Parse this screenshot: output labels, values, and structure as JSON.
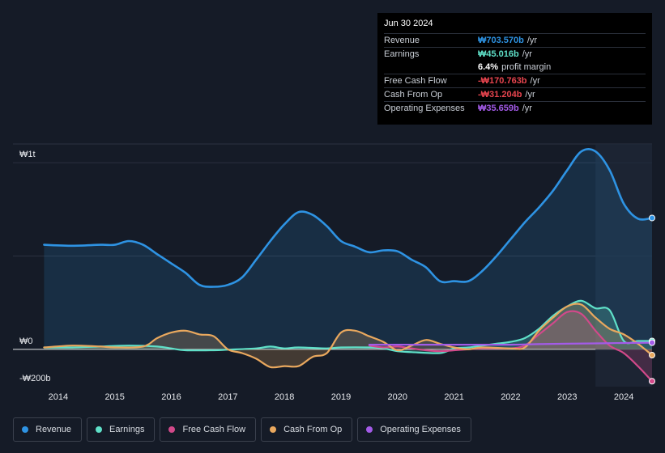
{
  "tooltip": {
    "date": "Jun 30 2024",
    "rows": [
      {
        "label": "Revenue",
        "value": "₩703.570b",
        "unit": "/yr",
        "color": "#2e93e3"
      },
      {
        "label": "Earnings",
        "value": "₩45.016b",
        "unit": "/yr",
        "color": "#5fe0c8"
      },
      {
        "label": "",
        "value": "6.4%",
        "unit": "profit margin",
        "color": "#ffffff"
      },
      {
        "label": "Free Cash Flow",
        "value": "-₩170.763b",
        "unit": "/yr",
        "color": "#e8454f"
      },
      {
        "label": "Cash From Op",
        "value": "-₩31.204b",
        "unit": "/yr",
        "color": "#e8454f"
      },
      {
        "label": "Operating Expenses",
        "value": "₩35.659b",
        "unit": "/yr",
        "color": "#a35be8"
      }
    ]
  },
  "chart_data": {
    "type": "line",
    "title": "",
    "ylim": [
      -200,
      1100
    ],
    "y_tick_labels": [
      {
        "value": 1000,
        "label": "₩1t"
      },
      {
        "value": 0,
        "label": "₩0"
      },
      {
        "value": -200,
        "label": "-₩200b"
      }
    ],
    "x_tick_labels": [
      {
        "value": 2014.0,
        "label": "2014"
      },
      {
        "value": 2015.0,
        "label": "2015"
      },
      {
        "value": 2016.0,
        "label": "2016"
      },
      {
        "value": 2017.0,
        "label": "2017"
      },
      {
        "value": 2018.0,
        "label": "2018"
      },
      {
        "value": 2019.0,
        "label": "2019"
      },
      {
        "value": 2020.0,
        "label": "2020"
      },
      {
        "value": 2021.0,
        "label": "2021"
      },
      {
        "value": 2022.0,
        "label": "2022"
      },
      {
        "value": 2023.0,
        "label": "2023"
      },
      {
        "value": 2024.0,
        "label": "2024"
      }
    ],
    "xlim": [
      2013.2,
      2024.5
    ],
    "highlight_from": 2023.5,
    "series": [
      {
        "name": "Revenue",
        "color": "#2e93e3",
        "fill": true,
        "points": [
          [
            2013.75,
            560
          ],
          [
            2014.25,
            555
          ],
          [
            2014.75,
            560
          ],
          [
            2015.0,
            560
          ],
          [
            2015.25,
            580
          ],
          [
            2015.5,
            560
          ],
          [
            2015.75,
            510
          ],
          [
            2016.0,
            460
          ],
          [
            2016.25,
            410
          ],
          [
            2016.5,
            345
          ],
          [
            2016.75,
            335
          ],
          [
            2017.0,
            345
          ],
          [
            2017.25,
            385
          ],
          [
            2017.5,
            480
          ],
          [
            2017.75,
            580
          ],
          [
            2018.0,
            670
          ],
          [
            2018.25,
            735
          ],
          [
            2018.5,
            720
          ],
          [
            2018.75,
            660
          ],
          [
            2019.0,
            580
          ],
          [
            2019.25,
            550
          ],
          [
            2019.5,
            520
          ],
          [
            2019.75,
            530
          ],
          [
            2020.0,
            525
          ],
          [
            2020.25,
            480
          ],
          [
            2020.5,
            440
          ],
          [
            2020.75,
            365
          ],
          [
            2021.0,
            365
          ],
          [
            2021.25,
            365
          ],
          [
            2021.5,
            420
          ],
          [
            2021.75,
            500
          ],
          [
            2022.0,
            590
          ],
          [
            2022.25,
            680
          ],
          [
            2022.5,
            760
          ],
          [
            2022.75,
            850
          ],
          [
            2023.0,
            960
          ],
          [
            2023.25,
            1060
          ],
          [
            2023.5,
            1060
          ],
          [
            2023.75,
            960
          ],
          [
            2024.0,
            780
          ],
          [
            2024.25,
            700
          ],
          [
            2024.5,
            703.57
          ]
        ]
      },
      {
        "name": "Earnings",
        "color": "#5fe0c8",
        "fill": true,
        "points": [
          [
            2013.75,
            10
          ],
          [
            2014.25,
            10
          ],
          [
            2014.75,
            15
          ],
          [
            2015.25,
            20
          ],
          [
            2015.75,
            15
          ],
          [
            2016.0,
            5
          ],
          [
            2016.25,
            -5
          ],
          [
            2016.75,
            -5
          ],
          [
            2017.0,
            -2
          ],
          [
            2017.5,
            5
          ],
          [
            2017.75,
            15
          ],
          [
            2018.0,
            5
          ],
          [
            2018.25,
            10
          ],
          [
            2018.75,
            5
          ],
          [
            2019.0,
            10
          ],
          [
            2019.5,
            10
          ],
          [
            2019.75,
            5
          ],
          [
            2020.0,
            -10
          ],
          [
            2020.25,
            -15
          ],
          [
            2020.75,
            -20
          ],
          [
            2021.0,
            5
          ],
          [
            2021.25,
            10
          ],
          [
            2021.5,
            20
          ],
          [
            2021.75,
            30
          ],
          [
            2022.0,
            40
          ],
          [
            2022.25,
            60
          ],
          [
            2022.5,
            110
          ],
          [
            2022.75,
            180
          ],
          [
            2023.0,
            230
          ],
          [
            2023.25,
            260
          ],
          [
            2023.5,
            220
          ],
          [
            2023.75,
            210
          ],
          [
            2024.0,
            45
          ],
          [
            2024.25,
            45
          ],
          [
            2024.5,
            45.016
          ]
        ]
      },
      {
        "name": "Free Cash Flow",
        "color": "#d2498a",
        "fill": true,
        "points": [
          [
            2019.5,
            20
          ],
          [
            2019.75,
            10
          ],
          [
            2020.0,
            15
          ],
          [
            2020.25,
            5
          ],
          [
            2020.5,
            -5
          ],
          [
            2020.75,
            -10
          ],
          [
            2021.0,
            -5
          ],
          [
            2021.25,
            0
          ],
          [
            2021.5,
            5
          ],
          [
            2021.75,
            5
          ],
          [
            2022.0,
            5
          ],
          [
            2022.25,
            20
          ],
          [
            2022.5,
            80
          ],
          [
            2022.75,
            140
          ],
          [
            2023.0,
            200
          ],
          [
            2023.25,
            190
          ],
          [
            2023.5,
            100
          ],
          [
            2023.75,
            20
          ],
          [
            2024.0,
            -20
          ],
          [
            2024.25,
            -90
          ],
          [
            2024.5,
            -170.763
          ]
        ]
      },
      {
        "name": "Cash From Op",
        "color": "#e9a85e",
        "fill": true,
        "points": [
          [
            2013.75,
            10
          ],
          [
            2014.25,
            20
          ],
          [
            2014.75,
            15
          ],
          [
            2015.0,
            10
          ],
          [
            2015.5,
            15
          ],
          [
            2015.75,
            60
          ],
          [
            2016.0,
            90
          ],
          [
            2016.25,
            100
          ],
          [
            2016.5,
            80
          ],
          [
            2016.75,
            70
          ],
          [
            2017.0,
            0
          ],
          [
            2017.25,
            -20
          ],
          [
            2017.5,
            -50
          ],
          [
            2017.75,
            -95
          ],
          [
            2018.0,
            -90
          ],
          [
            2018.25,
            -90
          ],
          [
            2018.5,
            -40
          ],
          [
            2018.75,
            -20
          ],
          [
            2019.0,
            90
          ],
          [
            2019.25,
            100
          ],
          [
            2019.5,
            70
          ],
          [
            2019.75,
            40
          ],
          [
            2020.0,
            -5
          ],
          [
            2020.25,
            20
          ],
          [
            2020.5,
            50
          ],
          [
            2020.75,
            30
          ],
          [
            2021.0,
            10
          ],
          [
            2021.25,
            0
          ],
          [
            2021.5,
            10
          ],
          [
            2022.0,
            5
          ],
          [
            2022.25,
            10
          ],
          [
            2022.5,
            100
          ],
          [
            2022.75,
            170
          ],
          [
            2023.0,
            230
          ],
          [
            2023.25,
            240
          ],
          [
            2023.5,
            170
          ],
          [
            2023.75,
            110
          ],
          [
            2024.0,
            80
          ],
          [
            2024.25,
            30
          ],
          [
            2024.5,
            -31.204
          ]
        ]
      },
      {
        "name": "Operating Expenses",
        "color": "#a35be8",
        "fill": false,
        "points": [
          [
            2019.5,
            25
          ],
          [
            2020.0,
            25
          ],
          [
            2020.5,
            25
          ],
          [
            2021.0,
            25
          ],
          [
            2021.5,
            25
          ],
          [
            2022.0,
            25
          ],
          [
            2022.5,
            28
          ],
          [
            2023.0,
            30
          ],
          [
            2023.5,
            32
          ],
          [
            2024.0,
            34
          ],
          [
            2024.5,
            35.659
          ]
        ]
      }
    ]
  },
  "legend": [
    {
      "label": "Revenue",
      "color": "#2e93e3"
    },
    {
      "label": "Earnings",
      "color": "#5fe0c8"
    },
    {
      "label": "Free Cash Flow",
      "color": "#d2498a"
    },
    {
      "label": "Cash From Op",
      "color": "#e9a85e"
    },
    {
      "label": "Operating Expenses",
      "color": "#a35be8"
    }
  ]
}
